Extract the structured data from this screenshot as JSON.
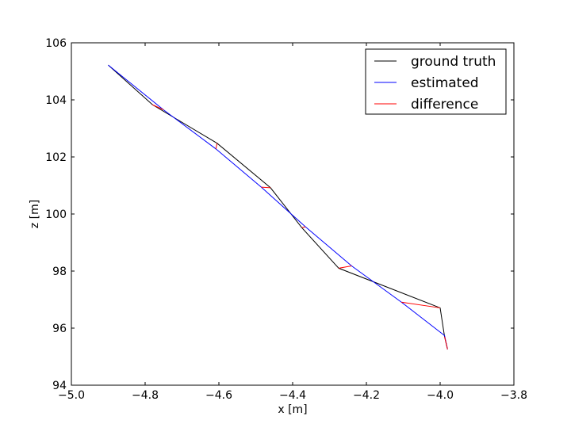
{
  "chart_data": {
    "type": "line",
    "xlabel": "x [m]",
    "ylabel": "z [m]",
    "xlim": [
      -5.0,
      -3.8
    ],
    "ylim": [
      94,
      106
    ],
    "xticks": [
      -5.0,
      -4.8,
      -4.6,
      -4.4,
      -4.2,
      -4.0,
      -3.8
    ],
    "xtick_labels": [
      "−5.0",
      "−4.8",
      "−4.6",
      "−4.4",
      "−4.2",
      "−4.0",
      "−3.8"
    ],
    "yticks": [
      94,
      96,
      98,
      100,
      102,
      104,
      106
    ],
    "ytick_labels": [
      "94",
      "96",
      "98",
      "100",
      "102",
      "104",
      "106"
    ],
    "grid": false,
    "legend_position": "top-right",
    "series": [
      {
        "name": "ground truth",
        "color": "#000000",
        "x": [
          -4.9,
          -4.78,
          -4.605,
          -4.46,
          -4.375,
          -4.275,
          -4.0,
          -3.988,
          -3.98
        ],
        "y": [
          105.22,
          103.83,
          102.48,
          100.92,
          99.52,
          98.1,
          96.71,
          95.7,
          95.26
        ]
      },
      {
        "name": "estimated",
        "color": "#0000ff",
        "x": [
          -4.9,
          -4.75,
          -4.608,
          -4.485,
          -4.365,
          -4.24,
          -4.105,
          -3.988,
          -3.98
        ],
        "y": [
          105.22,
          103.65,
          102.28,
          100.94,
          99.55,
          98.18,
          96.91,
          95.74,
          95.26
        ]
      },
      {
        "name": "difference",
        "color": "#ff0000",
        "segments": [
          [
            [
              -4.78,
              103.83
            ],
            [
              -4.75,
              103.65
            ]
          ],
          [
            [
              -4.605,
              102.48
            ],
            [
              -4.608,
              102.28
            ]
          ],
          [
            [
              -4.46,
              100.92
            ],
            [
              -4.485,
              100.94
            ]
          ],
          [
            [
              -4.375,
              99.52
            ],
            [
              -4.365,
              99.55
            ]
          ],
          [
            [
              -4.275,
              98.1
            ],
            [
              -4.24,
              98.18
            ]
          ],
          [
            [
              -4.0,
              96.71
            ],
            [
              -4.105,
              96.91
            ]
          ],
          [
            [
              -3.988,
              95.7
            ],
            [
              -3.98,
              95.26
            ]
          ]
        ]
      }
    ]
  }
}
